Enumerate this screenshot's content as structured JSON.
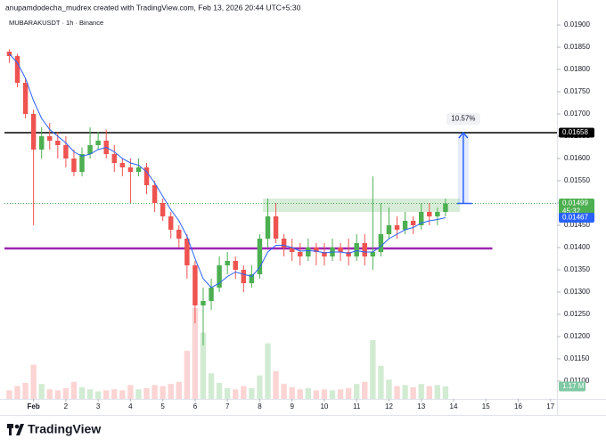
{
  "header": {
    "credit": "anupamdodecha_mudrex created with TradingView.com, Feb 13, 2026 20:44 UTC+5:30",
    "symbol": "MUBARAKUSDT · 1h · Binance"
  },
  "chart_data": {
    "type": "candlestick",
    "x": [
      0.25,
      0.5,
      0.75,
      1.0,
      1.25,
      1.5,
      1.75,
      2.0,
      2.25,
      2.5,
      2.75,
      3.0,
      3.25,
      3.5,
      3.75,
      4.0,
      4.25,
      4.5,
      4.75,
      5.0,
      5.25,
      5.5,
      5.75,
      6.0,
      6.25,
      6.5,
      6.75,
      7.0,
      7.25,
      7.5,
      7.75,
      8.0,
      8.25,
      8.5,
      8.75,
      9.0,
      9.25,
      9.5,
      9.75,
      10.0,
      10.25,
      10.5,
      10.75,
      11.0,
      11.25,
      11.5,
      11.75,
      12.0,
      12.25,
      12.5,
      12.75,
      13.0,
      13.25,
      13.5,
      13.75
    ],
    "open": [
      0.0184,
      0.0183,
      0.0177,
      0.017,
      0.0162,
      0.0165,
      0.0164,
      0.0163,
      0.016,
      0.0157,
      0.0161,
      0.0163,
      0.0164,
      0.0161,
      0.0159,
      0.0158,
      0.0157,
      0.0158,
      0.0154,
      0.015,
      0.0147,
      0.0144,
      0.0142,
      0.0136,
      0.0127,
      0.0128,
      0.0131,
      0.0136,
      0.0137,
      0.0135,
      0.0132,
      0.0134,
      0.0142,
      0.0147,
      0.0142,
      0.014,
      0.0139,
      0.0138,
      0.014,
      0.0139,
      0.0138,
      0.014,
      0.0139,
      0.0138,
      0.0141,
      0.0138,
      0.0139,
      0.0143,
      0.0145,
      0.0144,
      0.0146,
      0.0145,
      0.0148,
      0.0147,
      0.0148
    ],
    "high": [
      0.01845,
      0.01835,
      0.0178,
      0.0171,
      0.0167,
      0.0168,
      0.0166,
      0.0165,
      0.0162,
      0.01625,
      0.0167,
      0.0166,
      0.01665,
      0.0163,
      0.016,
      0.016,
      0.016,
      0.0159,
      0.0155,
      0.0151,
      0.0148,
      0.0145,
      0.0143,
      0.0137,
      0.0131,
      0.0133,
      0.0138,
      0.0139,
      0.0138,
      0.0136,
      0.0136,
      0.0143,
      0.0151,
      0.015,
      0.0143,
      0.0142,
      0.0141,
      0.0142,
      0.0141,
      0.0141,
      0.0142,
      0.0141,
      0.0142,
      0.0143,
      0.0143,
      0.0156,
      0.015,
      0.0149,
      0.0147,
      0.0148,
      0.0147,
      0.015,
      0.015,
      0.0149,
      0.0151
    ],
    "low": [
      0.01815,
      0.0176,
      0.0169,
      0.0145,
      0.016,
      0.0162,
      0.016,
      0.0158,
      0.0156,
      0.0156,
      0.016,
      0.0162,
      0.016,
      0.0157,
      0.0156,
      0.015,
      0.0156,
      0.0152,
      0.0148,
      0.0146,
      0.0142,
      0.014,
      0.0133,
      0.0123,
      0.0118,
      0.0126,
      0.013,
      0.0134,
      0.0133,
      0.013,
      0.0131,
      0.0133,
      0.014,
      0.0141,
      0.0138,
      0.0137,
      0.0136,
      0.0137,
      0.0136,
      0.0136,
      0.0137,
      0.0137,
      0.0136,
      0.0137,
      0.0136,
      0.0135,
      0.0138,
      0.0142,
      0.0142,
      0.0143,
      0.0143,
      0.0144,
      0.0145,
      0.0145,
      0.0147
    ],
    "close": [
      0.0183,
      0.0177,
      0.017,
      0.0162,
      0.0165,
      0.0164,
      0.0163,
      0.016,
      0.0157,
      0.0161,
      0.0163,
      0.0164,
      0.0161,
      0.0159,
      0.0158,
      0.0157,
      0.0158,
      0.0154,
      0.015,
      0.0147,
      0.0144,
      0.0142,
      0.0136,
      0.0127,
      0.0128,
      0.0131,
      0.0136,
      0.0137,
      0.0135,
      0.0132,
      0.0134,
      0.0142,
      0.0147,
      0.0142,
      0.014,
      0.0139,
      0.0138,
      0.014,
      0.0139,
      0.0138,
      0.014,
      0.0139,
      0.0138,
      0.0141,
      0.0138,
      0.0139,
      0.0143,
      0.0145,
      0.0144,
      0.0146,
      0.0145,
      0.0148,
      0.0147,
      0.0148,
      0.01499
    ],
    "volume": [
      0.8,
      1.2,
      1.5,
      3.2,
      1.4,
      0.9,
      0.8,
      1.0,
      1.6,
      1.1,
      0.9,
      0.7,
      0.8,
      0.9,
      0.8,
      1.3,
      0.9,
      1.0,
      1.3,
      1.2,
      1.4,
      1.6,
      4.5,
      8.5,
      6.2,
      2.4,
      1.5,
      1.0,
      0.9,
      1.2,
      1.0,
      2.2,
      5.2,
      2.6,
      1.4,
      1.1,
      0.9,
      1.0,
      0.8,
      0.9,
      0.8,
      0.9,
      1.0,
      1.4,
      1.6,
      5.5,
      3.1,
      1.8,
      1.2,
      1.3,
      1.1,
      1.4,
      1.2,
      1.3,
      1.17
    ],
    "volume_lim": [
      0,
      10
    ],
    "volume_label": "1.17 M",
    "up_color": "#4caf50",
    "down_color": "#ef5350",
    "ma": {
      "color": "#2962ff",
      "values": [
        0.01835,
        0.01815,
        0.0178,
        0.0173,
        0.0169,
        0.01665,
        0.0165,
        0.01635,
        0.01615,
        0.01605,
        0.0161,
        0.0162,
        0.01625,
        0.01615,
        0.016,
        0.0159,
        0.01585,
        0.0157,
        0.01545,
        0.01515,
        0.01485,
        0.0146,
        0.01425,
        0.01375,
        0.0133,
        0.0131,
        0.0132,
        0.01335,
        0.01345,
        0.0134,
        0.01335,
        0.01355,
        0.0139,
        0.01405,
        0.01405,
        0.014,
        0.01392,
        0.01393,
        0.01392,
        0.01388,
        0.0139,
        0.0139,
        0.01387,
        0.01393,
        0.0139,
        0.0139,
        0.01403,
        0.0142,
        0.0143,
        0.0144,
        0.01445,
        0.01455,
        0.0146,
        0.01463,
        0.01467
      ]
    },
    "resistance": {
      "value": 0.01658,
      "color": "#000000"
    },
    "support": {
      "value": 0.01398,
      "color": "#9c27b0"
    },
    "zone": {
      "from": 0.0148,
      "to": 0.0151,
      "x": [
        8.1,
        14.2
      ],
      "color": "#c8e6c9"
    },
    "countdown": "45:32",
    "measure": {
      "x": 14.3,
      "from": 0.01499,
      "to": 0.01658,
      "label": "10.57%",
      "color": "#2962ff"
    },
    "xlim": [
      0.1,
      17.2
    ],
    "xticks": [
      {
        "value": 1,
        "label": "Feb"
      },
      2,
      3,
      4,
      5,
      6,
      7,
      8,
      9,
      10,
      11,
      12,
      13,
      14,
      15,
      16,
      17
    ],
    "ylim": [
      0.0106,
      0.01928
    ],
    "yticks": [
      {
        "value": 0.011,
        "label": "0.01100"
      },
      {
        "value": 0.0115,
        "label": "0.01150"
      },
      {
        "value": 0.012,
        "label": "0.01200"
      },
      {
        "value": 0.0125,
        "label": "0.01250"
      },
      {
        "value": 0.013,
        "label": "0.01300"
      },
      {
        "value": 0.0135,
        "label": "0.01350"
      },
      {
        "value": 0.014,
        "label": "0.01400"
      },
      {
        "value": 0.0145,
        "label": "0.01450"
      },
      {
        "value": 0.015,
        "label": "0.01500"
      },
      {
        "value": 0.0155,
        "label": "0.01550"
      },
      {
        "value": 0.016,
        "label": "0.01600"
      },
      {
        "value": 0.0165,
        "label": "0.01650"
      },
      {
        "value": 0.017,
        "label": "0.01700"
      },
      {
        "value": 0.0175,
        "label": "0.01750"
      },
      {
        "value": 0.018,
        "label": "0.01800"
      },
      {
        "value": 0.0185,
        "label": "0.01850"
      },
      {
        "value": 0.019,
        "label": "0.01900"
      }
    ]
  },
  "footer": {
    "brand": "TradingView"
  }
}
